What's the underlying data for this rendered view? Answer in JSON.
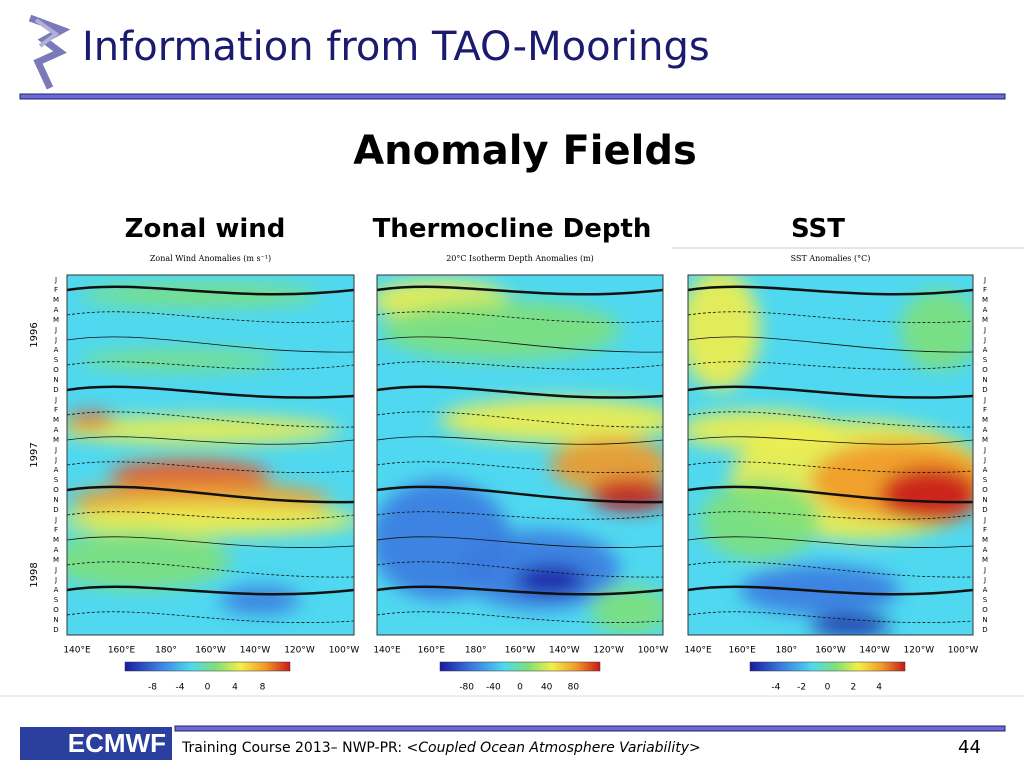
{
  "header": {
    "title": "Information from TAO-Moorings"
  },
  "subtitle": "Anomaly Fields",
  "panels": [
    {
      "label": "Zonal wind",
      "title": "Zonal Wind Anomalies (m s⁻¹)",
      "colorbar_ticks": [
        "-8",
        "-4",
        "0",
        "4",
        "8"
      ]
    },
    {
      "label": "Thermocline Depth",
      "title": "20°C Isotherm Depth Anomalies (m)",
      "colorbar_ticks": [
        "-80",
        "-40",
        "0",
        "40",
        "80"
      ]
    },
    {
      "label": "SST",
      "title": "SST Anomalies (°C)",
      "colorbar_ticks": [
        "-4",
        "-2",
        "0",
        "2",
        "4"
      ]
    }
  ],
  "years": [
    "1996",
    "1997",
    "1998"
  ],
  "months": [
    "J",
    "F",
    "M",
    "A",
    "M",
    "J",
    "J",
    "A",
    "S",
    "O",
    "N",
    "D"
  ],
  "longitudes": [
    "140°E",
    "160°E",
    "180°",
    "160°W",
    "140°W",
    "120°W",
    "100°W"
  ],
  "footer": {
    "logo": "ECMWF",
    "text": "Training Course 2013– NWP-PR: ",
    "italic": "<Coupled Ocean Atmosphere Variability>",
    "page": "44"
  }
}
